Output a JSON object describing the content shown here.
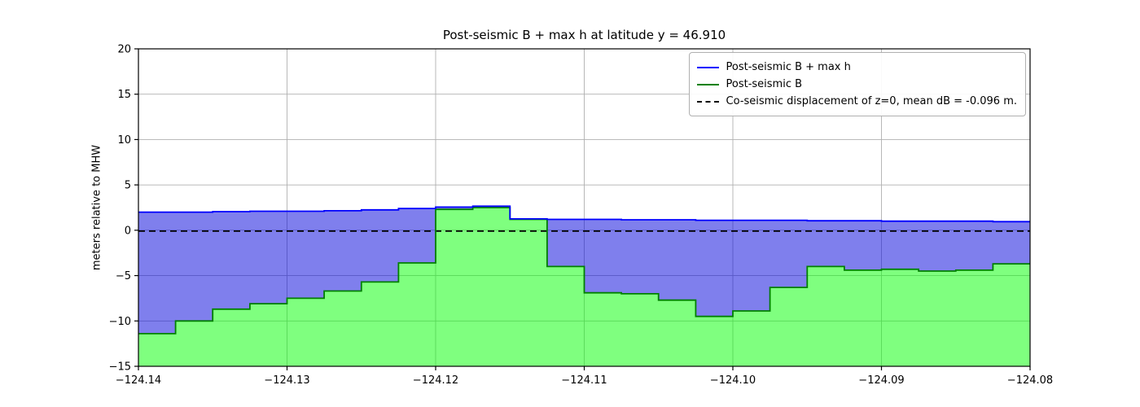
{
  "chart_data": {
    "type": "area",
    "title": "Post-seismic B + max h at latitude y = 46.910",
    "xlabel": "",
    "ylabel": "meters relative to MHW",
    "xlim": [
      -124.14,
      -124.08
    ],
    "ylim": [
      -15,
      20
    ],
    "x_ticks": [
      -124.14,
      -124.13,
      -124.12,
      -124.11,
      -124.1,
      -124.09,
      -124.08
    ],
    "x_tick_labels": [
      "−124.14",
      "−124.13",
      "−124.12",
      "−124.11",
      "−124.10",
      "−124.09",
      "−124.08"
    ],
    "y_ticks": [
      -15,
      -10,
      -5,
      0,
      5,
      10,
      15,
      20
    ],
    "y_tick_labels": [
      "−15",
      "−10",
      "−5",
      "0",
      "5",
      "10",
      "15",
      "20"
    ],
    "grid": true,
    "grid_color": "#b0b0b0",
    "legend_position": "upper right",
    "draw_style": "steps-post",
    "step_edges_x": [
      -124.14,
      -124.1375,
      -124.135,
      -124.1325,
      -124.13,
      -124.1275,
      -124.125,
      -124.1225,
      -124.12,
      -124.1175,
      -124.115,
      -124.1125,
      -124.11,
      -124.1075,
      -124.105,
      -124.1025,
      -124.1,
      -124.0975,
      -124.095,
      -124.0925,
      -124.09,
      -124.0875,
      -124.085,
      -124.0825,
      -124.08
    ],
    "series": [
      {
        "name": "Post-seismic B + max h",
        "line_color": "#0000ff",
        "fill_color": "rgba(0,0,220,0.5)",
        "style": "solid",
        "values": [
          2.0,
          2.0,
          2.05,
          2.1,
          2.1,
          2.15,
          2.25,
          2.4,
          2.55,
          2.65,
          1.25,
          1.2,
          1.2,
          1.15,
          1.15,
          1.1,
          1.1,
          1.1,
          1.05,
          1.05,
          1.0,
          1.0,
          1.0,
          0.95
        ]
      },
      {
        "name": "Post-seismic B",
        "line_color": "#008000",
        "fill_color": "rgba(0,255,0,0.5)",
        "style": "solid",
        "values": [
          -11.4,
          -10.0,
          -8.7,
          -8.1,
          -7.5,
          -6.7,
          -5.7,
          -3.6,
          2.3,
          2.5,
          1.2,
          -4.0,
          -6.9,
          -7.0,
          -7.7,
          -9.5,
          -8.9,
          -6.3,
          -4.0,
          -4.4,
          -4.3,
          -4.5,
          -4.4,
          -3.7
        ]
      }
    ],
    "baseline": {
      "label": "Co-seismic displacement of z=0, mean dB = -0.096 m.",
      "value": -0.096,
      "color": "#000000",
      "style": "dashed"
    }
  }
}
